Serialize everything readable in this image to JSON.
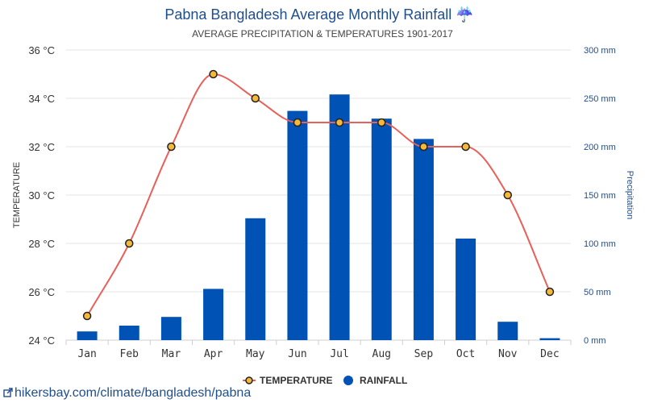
{
  "chart_data": {
    "type": "bar",
    "title": "Pabna Bangladesh Average Monthly Rainfall ☔",
    "subtitle": "AVERAGE PRECIPITATION & TEMPERATURES 1901-2017",
    "categories": [
      "Jan",
      "Feb",
      "Mar",
      "Apr",
      "May",
      "Jun",
      "Jul",
      "Aug",
      "Sep",
      "Oct",
      "Nov",
      "Dec"
    ],
    "series": [
      {
        "name": "TEMPERATURE",
        "type": "line",
        "axis": "left",
        "color": "#e8605a",
        "marker_fill": "#f5b93a",
        "values": [
          25,
          28,
          32,
          35,
          34,
          33,
          33,
          33,
          32,
          32,
          30,
          26
        ]
      },
      {
        "name": "RAINFALL",
        "type": "bar",
        "axis": "right",
        "color": "#0052b4",
        "values": [
          9,
          15,
          24,
          53,
          126,
          237,
          254,
          229,
          208,
          105,
          19,
          2
        ]
      }
    ],
    "yleft": {
      "label": "TEMPERATURE",
      "ticks": [
        "24 °C",
        "26 °C",
        "28 °C",
        "30 °C",
        "32 °C",
        "34 °C",
        "36 °C"
      ],
      "lim": [
        24,
        36
      ]
    },
    "yright": {
      "label": "Precipitation",
      "ticks": [
        "0 mm",
        "50 mm",
        "100 mm",
        "150 mm",
        "200 mm",
        "250 mm",
        "300 mm"
      ],
      "lim": [
        0,
        300
      ]
    },
    "grid": true,
    "legend": "bottom-center"
  },
  "footer": {
    "link_text": "hikersbay.com/climate/bangladesh/pabna"
  }
}
